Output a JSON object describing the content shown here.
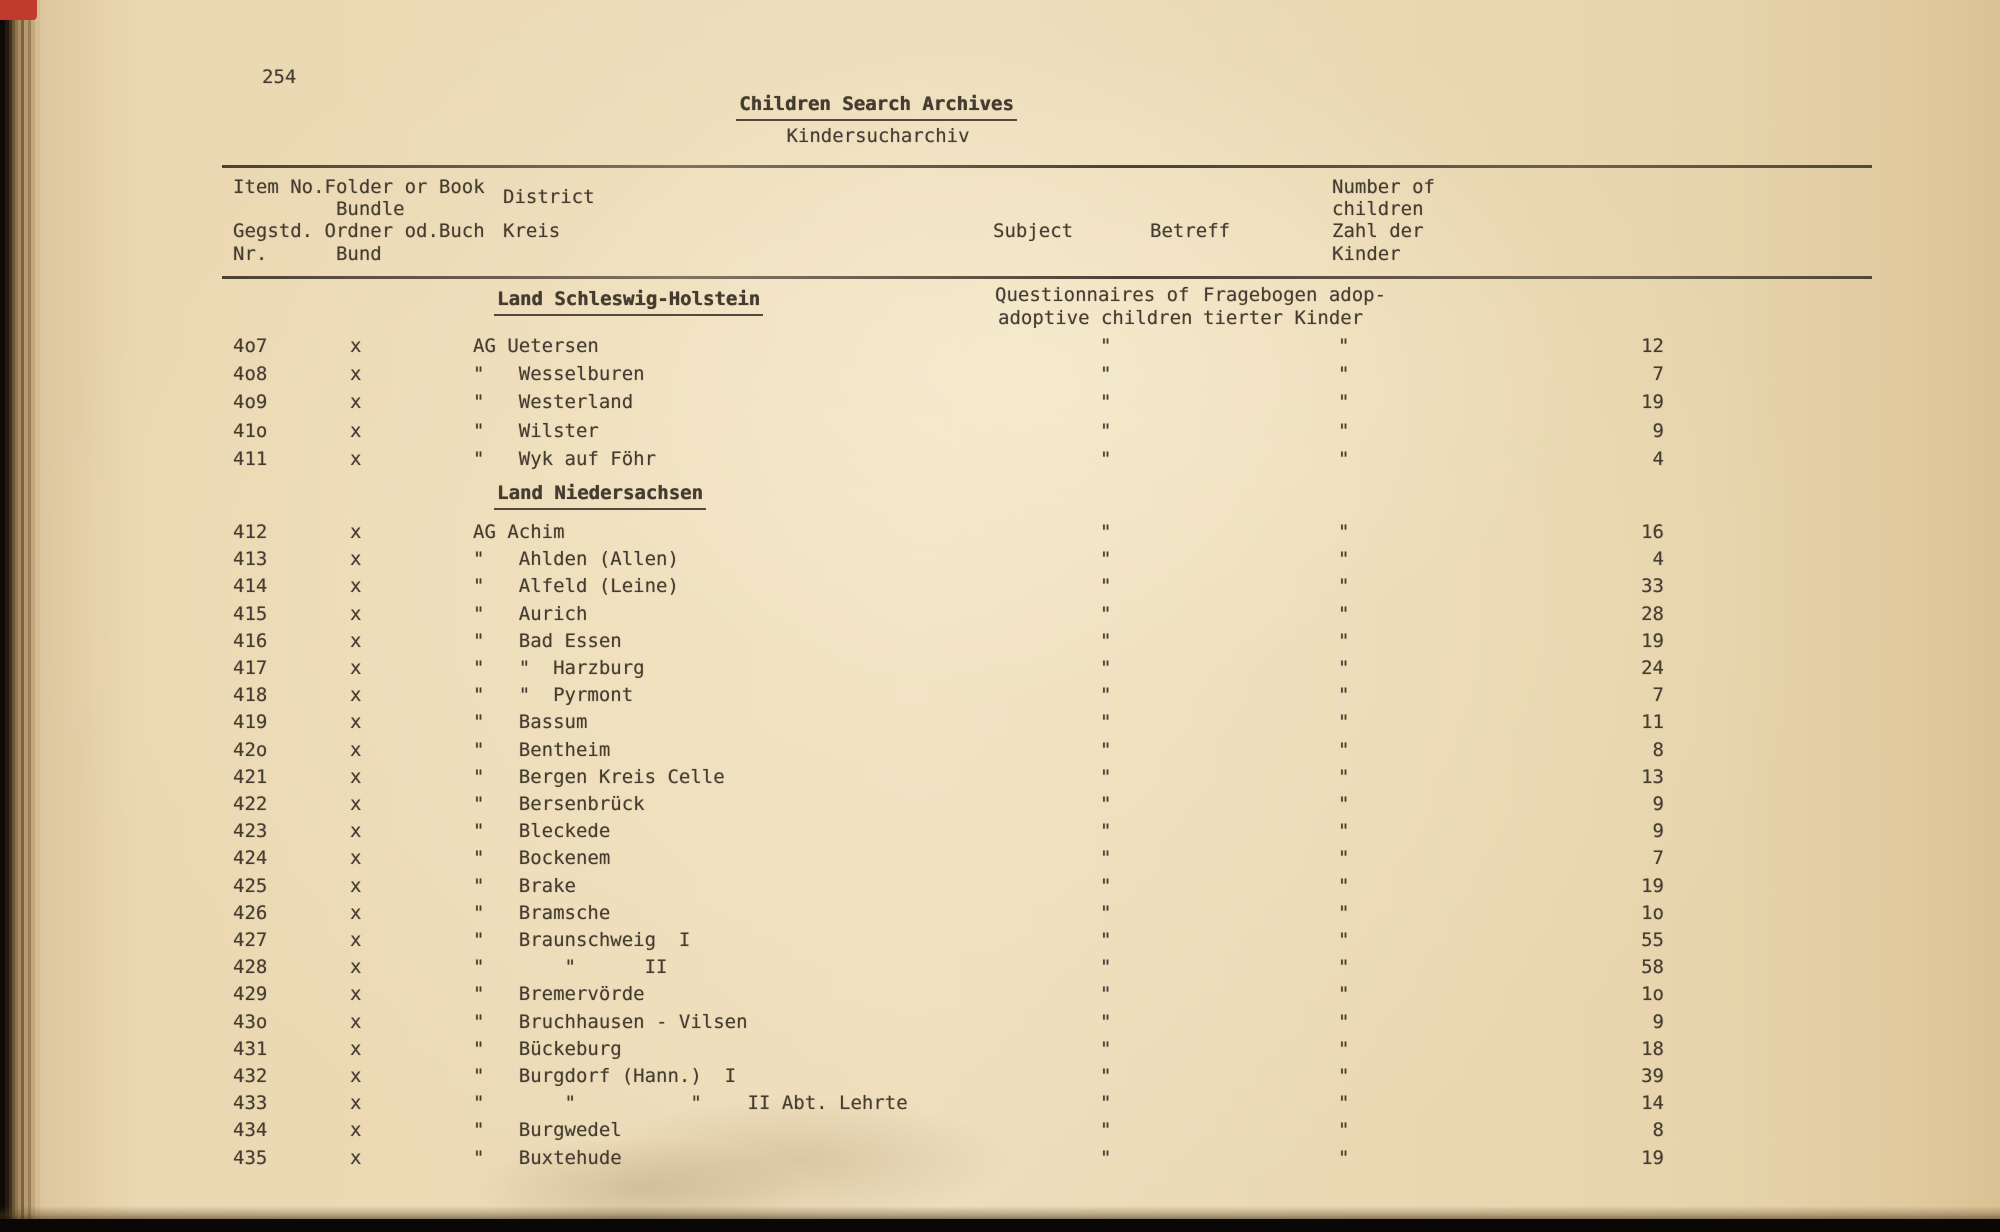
{
  "page_number": "254",
  "title": "Children Search Archives",
  "subtitle": "Kindersucharchiv",
  "table_header": {
    "left_lines": [
      "Item No.Folder or Book",
      "         Bundle",
      "Gegstd. Ordner od.Buch",
      "Nr.      Bund"
    ],
    "district_en": "District",
    "district_de": "Kreis",
    "subject": "Subject",
    "betreff": "Betreff",
    "count_lines": [
      "Number of",
      "children",
      "Zahl der",
      "Kinder"
    ]
  },
  "sections": [
    {
      "heading": "Land Schleswig-Holstein",
      "subject_note": [
        "Questionnaires of",
        "adoptive children"
      ],
      "betreff_note": [
        "Fragebogen adop-",
        "tierter Kinder"
      ],
      "rows": [
        {
          "item": "4o7",
          "folder": "x",
          "district": "AG Uetersen",
          "subject": "\"",
          "betreff": "\"",
          "count": "12"
        },
        {
          "item": "4o8",
          "folder": "x",
          "district": "\"   Wesselburen",
          "subject": "\"",
          "betreff": "\"",
          "count": "7"
        },
        {
          "item": "4o9",
          "folder": "x",
          "district": "\"   Westerland",
          "subject": "\"",
          "betreff": "\"",
          "count": "19"
        },
        {
          "item": "41o",
          "folder": "x",
          "district": "\"   Wilster",
          "subject": "\"",
          "betreff": "\"",
          "count": "9"
        },
        {
          "item": "411",
          "folder": "x",
          "district": "\"   Wyk auf Föhr",
          "subject": "\"",
          "betreff": "\"",
          "count": "4"
        }
      ]
    },
    {
      "heading": "Land Niedersachsen",
      "subject_note": [],
      "betreff_note": [],
      "rows": [
        {
          "item": "412",
          "folder": "x",
          "district": "AG Achim",
          "subject": "\"",
          "betreff": "\"",
          "count": "16"
        },
        {
          "item": "413",
          "folder": "x",
          "district": "\"   Ahlden (Allen)",
          "subject": "\"",
          "betreff": "\"",
          "count": "4"
        },
        {
          "item": "414",
          "folder": "x",
          "district": "\"   Alfeld (Leine)",
          "subject": "\"",
          "betreff": "\"",
          "count": "33"
        },
        {
          "item": "415",
          "folder": "x",
          "district": "\"   Aurich",
          "subject": "\"",
          "betreff": "\"",
          "count": "28"
        },
        {
          "item": "416",
          "folder": "x",
          "district": "\"   Bad Essen",
          "subject": "\"",
          "betreff": "\"",
          "count": "19"
        },
        {
          "item": "417",
          "folder": "x",
          "district": "\"   \"  Harzburg",
          "subject": "\"",
          "betreff": "\"",
          "count": "24"
        },
        {
          "item": "418",
          "folder": "x",
          "district": "\"   \"  Pyrmont",
          "subject": "\"",
          "betreff": "\"",
          "count": "7"
        },
        {
          "item": "419",
          "folder": "x",
          "district": "\"   Bassum",
          "subject": "\"",
          "betreff": "\"",
          "count": "11"
        },
        {
          "item": "42o",
          "folder": "x",
          "district": "\"   Bentheim",
          "subject": "\"",
          "betreff": "\"",
          "count": "8"
        },
        {
          "item": "421",
          "folder": "x",
          "district": "\"   Bergen Kreis Celle",
          "subject": "\"",
          "betreff": "\"",
          "count": "13"
        },
        {
          "item": "422",
          "folder": "x",
          "district": "\"   Bersenbrück",
          "subject": "\"",
          "betreff": "\"",
          "count": "9"
        },
        {
          "item": "423",
          "folder": "x",
          "district": "\"   Bleckede",
          "subject": "\"",
          "betreff": "\"",
          "count": "9"
        },
        {
          "item": "424",
          "folder": "x",
          "district": "\"   Bockenem",
          "subject": "\"",
          "betreff": "\"",
          "count": "7"
        },
        {
          "item": "425",
          "folder": "x",
          "district": "\"   Brake",
          "subject": "\"",
          "betreff": "\"",
          "count": "19"
        },
        {
          "item": "426",
          "folder": "x",
          "district": "\"   Bramsche",
          "subject": "\"",
          "betreff": "\"",
          "count": "1o"
        },
        {
          "item": "427",
          "folder": "x",
          "district": "\"   Braunschweig  I",
          "subject": "\"",
          "betreff": "\"",
          "count": "55"
        },
        {
          "item": "428",
          "folder": "x",
          "district": "\"       \"      II",
          "subject": "\"",
          "betreff": "\"",
          "count": "58"
        },
        {
          "item": "429",
          "folder": "x",
          "district": "\"   Bremervörde",
          "subject": "\"",
          "betreff": "\"",
          "count": "1o"
        },
        {
          "item": "43o",
          "folder": "x",
          "district": "\"   Bruchhausen - Vilsen",
          "subject": "\"",
          "betreff": "\"",
          "count": "9"
        },
        {
          "item": "431",
          "folder": "x",
          "district": "\"   Bückeburg",
          "subject": "\"",
          "betreff": "\"",
          "count": "18"
        },
        {
          "item": "432",
          "folder": "x",
          "district": "\"   Burgdorf (Hann.)  I",
          "subject": "\"",
          "betreff": "\"",
          "count": "39"
        },
        {
          "item": "433",
          "folder": "x",
          "district": "\"       \"          \"    II Abt. Lehrte",
          "subject": "\"",
          "betreff": "\"",
          "count": "14"
        },
        {
          "item": "434",
          "folder": "x",
          "district": "\"   Burgwedel",
          "subject": "\"",
          "betreff": "\"",
          "count": "8"
        },
        {
          "item": "435",
          "folder": "x",
          "district": "\"   Buxtehude",
          "subject": "\"",
          "betreff": "\"",
          "count": "19"
        }
      ]
    }
  ]
}
